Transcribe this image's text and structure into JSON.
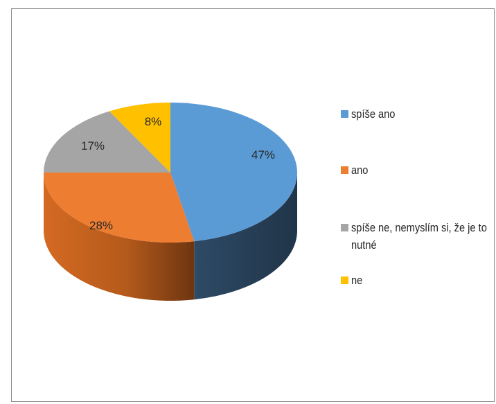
{
  "chart_data": {
    "type": "pie",
    "style": "3d",
    "categories": [
      "spíše ano",
      "ano",
      "spíše ne, nemyslím si, že je to nutné",
      "ne"
    ],
    "values": [
      47,
      28,
      17,
      8
    ],
    "labels": [
      "47%",
      "28%",
      "17%",
      "8%"
    ],
    "colors": [
      "#5b9bd5",
      "#ed7d31",
      "#a5a5a5",
      "#ffc000"
    ],
    "legend_position": "right"
  }
}
